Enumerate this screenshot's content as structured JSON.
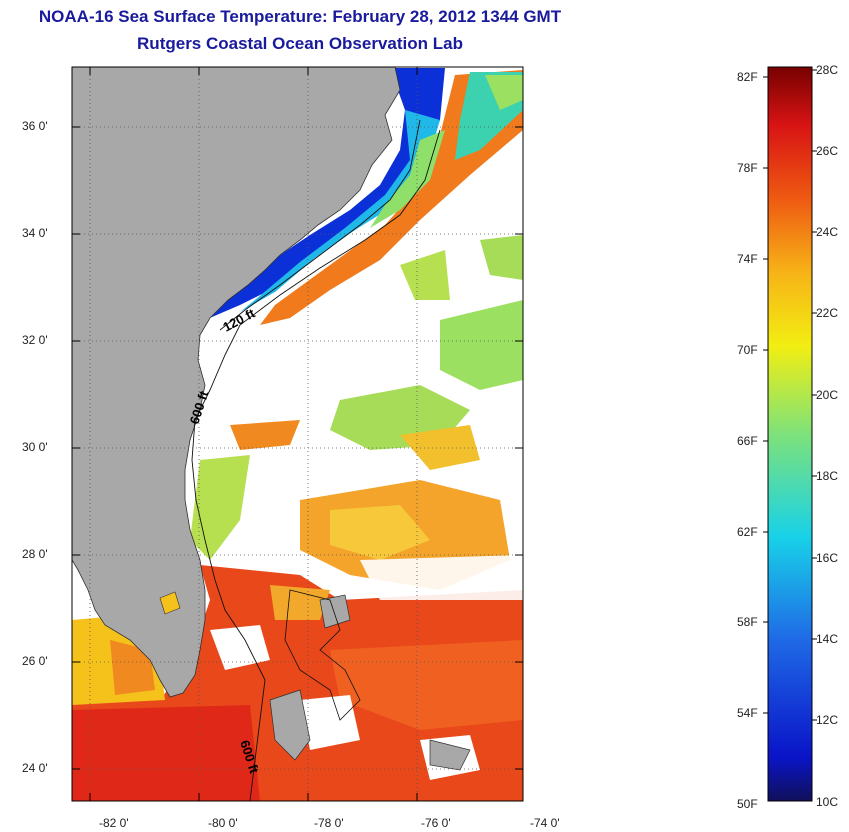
{
  "title": "NOAA-16 Sea Surface Temperature:  February 28, 2012 1344 GMT",
  "subtitle": "Rutgers Coastal Ocean Observation Lab",
  "map": {
    "lat_labels": [
      "36 0'",
      "34 0'",
      "32 0'",
      "30 0'",
      "28 0'",
      "26 0'",
      "24 0'"
    ],
    "lat_values": [
      36,
      34,
      32,
      30,
      28,
      26,
      24
    ],
    "lon_labels": [
      "-82 0'",
      "-80 0'",
      "-78 0'",
      "-76 0'",
      "-74 0'"
    ],
    "lon_values": [
      -82,
      -80,
      -78,
      -76,
      -74
    ],
    "contour_labels": [
      "120 ft",
      "600 ft",
      "600 ft"
    ],
    "colors": {
      "land": "#a8a8a8",
      "cloud": "#ffffff",
      "cold": "#0a1fd0",
      "cool": "#1fc0e6",
      "mild": "#9be060",
      "warm": "#f5c21c",
      "hot": "#e03010"
    }
  },
  "colorbar": {
    "fahrenheit_labels": [
      "82F",
      "78F",
      "74F",
      "70F",
      "66F",
      "62F",
      "58F",
      "54F",
      "50F"
    ],
    "celsius_labels": [
      "28C",
      "26C",
      "24C",
      "22C",
      "20C",
      "18C",
      "16C",
      "14C",
      "12C",
      "10C"
    ],
    "min_c": 10,
    "max_c": 28
  }
}
